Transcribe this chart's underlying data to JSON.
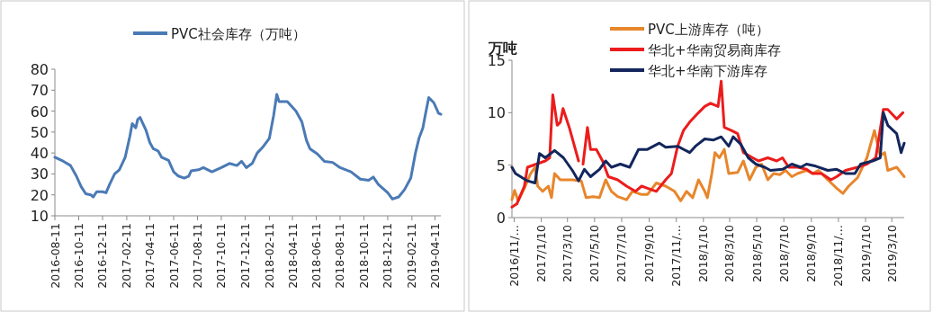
{
  "chart_data": [
    {
      "type": "line",
      "legend": "top",
      "grid": false,
      "ylim": [
        10,
        80
      ],
      "yticks": [
        10,
        20,
        30,
        40,
        50,
        60,
        70,
        80
      ],
      "xlim": [
        "2016-08-11",
        "2019-04-26"
      ],
      "xticks": [
        {
          "value": "2016-08-11",
          "label": "2016-08-11"
        },
        {
          "value": "2016-10-11",
          "label": "2016-10-11"
        },
        {
          "value": "2016-12-11",
          "label": "2016-12-11"
        },
        {
          "value": "2017-02-11",
          "label": "2017-02-11"
        },
        {
          "value": "2017-04-11",
          "label": "2017-04-11"
        },
        {
          "value": "2017-06-11",
          "label": "2017-06-11"
        },
        {
          "value": "2017-08-11",
          "label": "2017-08-11"
        },
        {
          "value": "2017-10-11",
          "label": "2017-10-11"
        },
        {
          "value": "2017-12-11",
          "label": "2017-12-11"
        },
        {
          "value": "2018-02-11",
          "label": "2018-02-11"
        },
        {
          "value": "2018-04-11",
          "label": "2018-04-11"
        },
        {
          "value": "2018-06-11",
          "label": "2018-06-11"
        },
        {
          "value": "2018-08-11",
          "label": "2018-08-11"
        },
        {
          "value": "2018-10-11",
          "label": "2018-10-11"
        },
        {
          "value": "2018-12-11",
          "label": "2018-12-11"
        },
        {
          "value": "2019-02-11",
          "label": "2019-02-11"
        },
        {
          "value": "2019-04-11",
          "label": "2019-04-11"
        }
      ],
      "series": [
        {
          "name": "PVC社会库存（万吨）",
          "color": "#4a7ab5",
          "x": [
            "2016-08-11",
            "2016-09-02",
            "2016-09-20",
            "2016-10-05",
            "2016-10-17",
            "2016-10-29",
            "2016-11-11",
            "2016-11-17",
            "2016-11-26",
            "2016-12-11",
            "2016-12-20",
            "2016-12-29",
            "2017-01-11",
            "2017-01-23",
            "2017-02-07",
            "2017-02-19",
            "2017-02-25",
            "2017-03-06",
            "2017-03-11",
            "2017-03-17",
            "2017-04-01",
            "2017-04-11",
            "2017-04-20",
            "2017-05-02",
            "2017-05-11",
            "2017-05-29",
            "2017-06-11",
            "2017-06-23",
            "2017-07-08",
            "2017-07-20",
            "2017-07-26",
            "2017-08-14",
            "2017-08-26",
            "2017-09-17",
            "2017-10-11",
            "2017-11-01",
            "2017-11-20",
            "2017-12-02",
            "2017-12-14",
            "2017-12-29",
            "2018-01-11",
            "2018-01-26",
            "2018-02-11",
            "2018-02-22",
            "2018-03-02",
            "2018-03-08",
            "2018-03-29",
            "2018-04-20",
            "2018-05-05",
            "2018-05-17",
            "2018-05-26",
            "2018-06-14",
            "2018-07-02",
            "2018-07-23",
            "2018-08-11",
            "2018-09-08",
            "2018-10-02",
            "2018-10-23",
            "2018-11-04",
            "2018-11-17",
            "2018-12-11",
            "2018-12-23",
            "2019-01-08",
            "2019-01-23",
            "2019-02-08",
            "2019-02-20",
            "2019-03-01",
            "2019-03-11",
            "2019-03-17",
            "2019-03-26",
            "2019-04-08",
            "2019-04-20",
            "2019-04-26"
          ],
          "values": [
            38,
            36,
            34,
            29,
            24,
            20.5,
            20,
            19,
            21.5,
            21.5,
            21,
            25,
            30,
            32,
            38,
            48,
            54,
            52,
            56,
            57,
            51,
            45,
            42,
            41,
            38,
            36.5,
            31,
            29,
            28,
            29,
            31.5,
            32,
            33,
            31,
            33,
            35,
            34,
            36,
            33,
            35,
            40,
            43,
            47,
            58,
            68,
            64.5,
            64.5,
            60,
            55,
            46,
            42,
            39.5,
            36,
            35.5,
            33,
            31,
            27.5,
            27,
            28.5,
            25,
            21,
            18,
            19,
            22.5,
            28,
            40,
            47,
            52,
            58,
            66.5,
            64,
            59,
            58.5
          ]
        }
      ]
    },
    {
      "type": "line",
      "legend": "top",
      "grid": false,
      "ylabel": "万吨",
      "ylim": [
        0,
        15
      ],
      "yticks": [
        0,
        5,
        10,
        15
      ],
      "xlim": [
        "2016-11-05",
        "2019-04-07"
      ],
      "xticks": [
        {
          "value": "2016-11-10",
          "label": "2016/11/…"
        },
        {
          "value": "2017-01-10",
          "label": "2017/1/10"
        },
        {
          "value": "2017-03-10",
          "label": "2017/3/10"
        },
        {
          "value": "2017-05-10",
          "label": "2017/5/10"
        },
        {
          "value": "2017-07-10",
          "label": "2017/7/10"
        },
        {
          "value": "2017-09-10",
          "label": "2017/9/10"
        },
        {
          "value": "2017-11-10",
          "label": "2017/11/…"
        },
        {
          "value": "2018-01-10",
          "label": "2018/1/10"
        },
        {
          "value": "2018-03-10",
          "label": "2018/3/10"
        },
        {
          "value": "2018-05-10",
          "label": "2018/5/10"
        },
        {
          "value": "2018-07-10",
          "label": "2018/7/10"
        },
        {
          "value": "2018-09-10",
          "label": "2018/9/10"
        },
        {
          "value": "2018-11-10",
          "label": "2018/11/…"
        },
        {
          "value": "2019-01-10",
          "label": "2019/1/10"
        },
        {
          "value": "2019-03-10",
          "label": "2019/3/10"
        }
      ],
      "series": [
        {
          "name": "PVC上游库存（吨）",
          "color": "#e8862c",
          "x": [
            "2016-11-05",
            "2016-11-11",
            "2016-11-19",
            "2016-12-03",
            "2016-12-17",
            "2016-12-27",
            "2017-01-02",
            "2017-01-13",
            "2017-01-26",
            "2017-02-02",
            "2017-02-09",
            "2017-02-22",
            "2017-03-21",
            "2017-04-10",
            "2017-04-21",
            "2017-05-07",
            "2017-05-21",
            "2017-06-04",
            "2017-06-17",
            "2017-07-01",
            "2017-07-21",
            "2017-08-03",
            "2017-08-24",
            "2017-09-06",
            "2017-09-26",
            "2017-10-17",
            "2017-11-06",
            "2017-11-20",
            "2017-12-03",
            "2017-12-17",
            "2017-12-30",
            "2018-01-13",
            "2018-01-19",
            "2018-01-29",
            "2018-02-05",
            "2018-02-15",
            "2018-02-26",
            "2018-03-08",
            "2018-03-28",
            "2018-04-10",
            "2018-04-24",
            "2018-05-08",
            "2018-05-21",
            "2018-06-04",
            "2018-06-17",
            "2018-07-01",
            "2018-07-14",
            "2018-07-28",
            "2018-08-10",
            "2018-08-30",
            "2018-09-13",
            "2018-09-26",
            "2018-10-17",
            "2018-11-06",
            "2018-11-20",
            "2018-12-03",
            "2018-12-23",
            "2019-01-13",
            "2019-01-30",
            "2019-02-12",
            "2019-02-22",
            "2019-03-01",
            "2019-03-21",
            "2019-04-07"
          ],
          "values": [
            1.7,
            2.6,
            1.6,
            2.8,
            4.2,
            4.8,
            3.0,
            2.5,
            3.0,
            1.9,
            4.2,
            3.6,
            3.6,
            3.5,
            1.9,
            2.0,
            1.9,
            3.6,
            2.5,
            2.0,
            1.7,
            2.5,
            2.2,
            2.2,
            3.3,
            3.0,
            2.5,
            1.6,
            2.5,
            1.9,
            3.6,
            2.5,
            1.9,
            4.2,
            6.2,
            5.7,
            6.5,
            4.2,
            4.3,
            5.4,
            3.6,
            4.8,
            5.1,
            3.6,
            4.2,
            4.1,
            4.5,
            3.9,
            4.2,
            4.5,
            4.2,
            4.5,
            3.6,
            2.8,
            2.3,
            3.0,
            3.8,
            5.7,
            8.3,
            5.9,
            6.2,
            4.5,
            4.8,
            3.9
          ]
        },
        {
          "name": "华北+华南贸易商库存",
          "color": "#ec1c1c",
          "x": [
            "2016-11-05",
            "2016-11-16",
            "2016-12-03",
            "2016-12-10",
            "2016-12-30",
            "2017-01-19",
            "2017-01-29",
            "2017-02-05",
            "2017-02-15",
            "2017-02-22",
            "2017-02-28",
            "2017-03-14",
            "2017-04-04",
            "2017-04-10",
            "2017-04-14",
            "2017-04-24",
            "2017-05-01",
            "2017-05-14",
            "2017-05-28",
            "2017-06-10",
            "2017-07-01",
            "2017-07-21",
            "2017-08-10",
            "2017-08-24",
            "2017-09-06",
            "2017-09-26",
            "2017-10-17",
            "2017-10-30",
            "2017-11-13",
            "2017-11-26",
            "2017-12-10",
            "2017-12-30",
            "2018-01-13",
            "2018-01-26",
            "2018-02-12",
            "2018-02-19",
            "2018-02-26",
            "2018-03-14",
            "2018-03-28",
            "2018-04-10",
            "2018-05-01",
            "2018-05-14",
            "2018-06-04",
            "2018-06-24",
            "2018-07-07",
            "2018-07-21",
            "2018-08-10",
            "2018-08-30",
            "2018-09-13",
            "2018-10-03",
            "2018-10-24",
            "2018-11-06",
            "2018-11-26",
            "2018-12-23",
            "2019-01-13",
            "2019-02-02",
            "2019-02-19",
            "2019-03-01",
            "2019-03-21",
            "2019-04-04"
          ],
          "values": [
            1.0,
            1.3,
            3.0,
            4.8,
            5.1,
            5.4,
            5.7,
            11.7,
            8.8,
            9.1,
            10.4,
            8.6,
            5.4,
            null,
            5.1,
            8.6,
            6.5,
            6.5,
            5.4,
            3.9,
            3.6,
            3.0,
            2.5,
            3.0,
            2.8,
            2.5,
            3.6,
            4.2,
            6.8,
            8.3,
            9.1,
            10.0,
            10.6,
            10.9,
            10.6,
            13.0,
            8.6,
            8.3,
            8.0,
            6.2,
            5.7,
            5.4,
            5.7,
            5.4,
            5.7,
            4.8,
            4.8,
            4.6,
            4.2,
            4.2,
            3.6,
            3.9,
            4.5,
            4.8,
            5.1,
            5.7,
            10.3,
            10.3,
            9.4,
            10.0
          ]
        },
        {
          "name": "华北+华南下游库存",
          "color": "#13265c",
          "x": [
            "2016-11-05",
            "2016-11-13",
            "2016-12-10",
            "2016-12-27",
            "2017-01-06",
            "2017-01-19",
            "2017-02-09",
            "2017-03-01",
            "2017-03-21",
            "2017-04-04",
            "2017-04-17",
            "2017-05-01",
            "2017-05-21",
            "2017-06-04",
            "2017-06-17",
            "2017-07-07",
            "2017-07-28",
            "2017-08-17",
            "2017-09-06",
            "2017-10-03",
            "2017-10-17",
            "2017-11-13",
            "2017-12-10",
            "2017-12-23",
            "2018-01-13",
            "2018-02-02",
            "2018-02-19",
            "2018-03-08",
            "2018-03-18",
            "2018-04-04",
            "2018-04-21",
            "2018-05-08",
            "2018-05-28",
            "2018-06-10",
            "2018-07-07",
            "2018-07-28",
            "2018-08-17",
            "2018-08-30",
            "2018-09-20",
            "2018-10-17",
            "2018-11-06",
            "2018-11-26",
            "2018-12-17",
            "2018-12-30",
            "2019-01-26",
            "2019-02-12",
            "2019-02-19",
            "2019-03-01",
            "2019-03-21",
            "2019-03-31",
            "2019-04-07"
          ],
          "values": [
            4.8,
            4.2,
            3.5,
            3.3,
            6.1,
            5.7,
            6.4,
            5.7,
            4.5,
            3.5,
            4.6,
            3.9,
            4.6,
            5.4,
            4.8,
            5.1,
            4.8,
            6.5,
            6.5,
            7.1,
            6.7,
            6.8,
            6.2,
            6.8,
            7.5,
            7.4,
            7.7,
            6.8,
            7.7,
            7.0,
            5.7,
            5.1,
            4.8,
            4.5,
            4.6,
            5.1,
            4.8,
            5.1,
            4.9,
            4.5,
            4.6,
            4.2,
            4.2,
            5.1,
            5.4,
            5.7,
            10.0,
            8.8,
            8.0,
            6.2,
            7.1
          ]
        }
      ]
    }
  ]
}
